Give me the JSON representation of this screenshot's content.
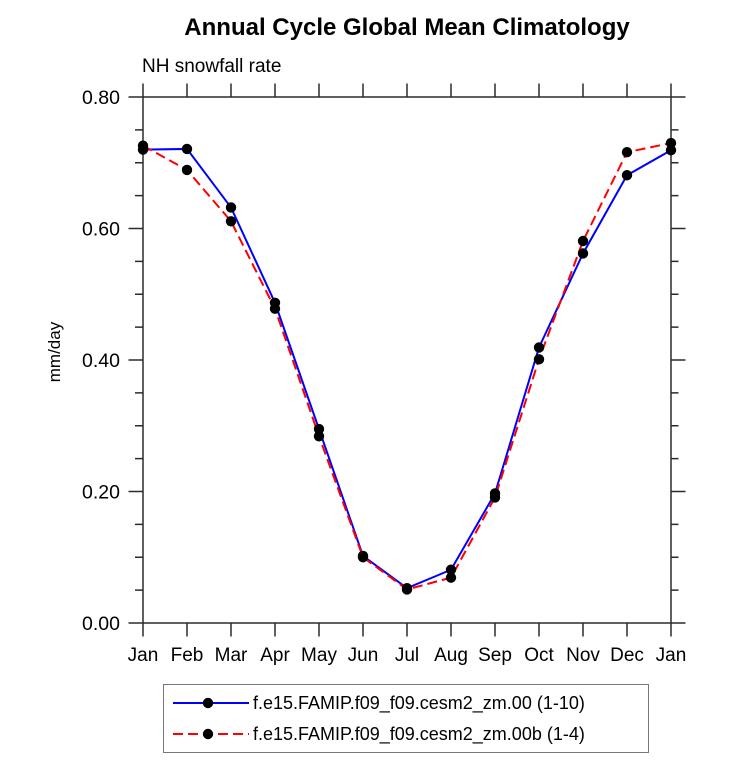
{
  "header": {
    "title": "Annual Cycle Global Mean Climatology",
    "subtitle": "NH snowfall rate"
  },
  "chart_data": {
    "type": "line",
    "title": "Annual Cycle Global Mean Climatology",
    "subtitle": "NH snowfall rate",
    "xlabel": "",
    "ylabel": "mm/day",
    "categories": [
      "Jan",
      "Feb",
      "Mar",
      "Apr",
      "May",
      "Jun",
      "Jul",
      "Aug",
      "Sep",
      "Oct",
      "Nov",
      "Dec",
      "Jan"
    ],
    "series": [
      {
        "name": "f.e15.FAMIP.f09_f09.cesm2_zm.00 (1-10)",
        "color": "#0000ff",
        "dash": "solid",
        "marker": "filled-circle",
        "marker_color": "#000000",
        "values": [
          0.72,
          0.721,
          0.632,
          0.487,
          0.295,
          0.102,
          0.053,
          0.081,
          0.197,
          0.419,
          0.562,
          0.681,
          0.719
        ]
      },
      {
        "name": "f.e15.FAMIP.f09_f09.cesm2_zm.00b (1-4)",
        "color": "#ff0000",
        "dash": "dashed",
        "marker": "filled-circle",
        "marker_color": "#000000",
        "values": [
          0.726,
          0.689,
          0.611,
          0.478,
          0.284,
          0.1,
          0.051,
          0.069,
          0.191,
          0.401,
          0.581,
          0.716,
          0.73
        ]
      }
    ],
    "ylim": [
      0.0,
      0.8
    ],
    "ytick_major_interval": 0.2,
    "ytick_minor_interval": 0.05,
    "ytick_labels": [
      "0.00",
      "0.20",
      "0.40",
      "0.60",
      "0.80"
    ],
    "grid": false,
    "legend_position": "bottom",
    "axis_frame": "box-with-outward-ticks"
  },
  "colors": {
    "axis": "#2b2b2b",
    "text": "#000000",
    "series_blue": "#0000ff",
    "series_red": "#ff0000",
    "marker": "#000000",
    "legend_border": "#777777",
    "background": "#ffffff"
  }
}
